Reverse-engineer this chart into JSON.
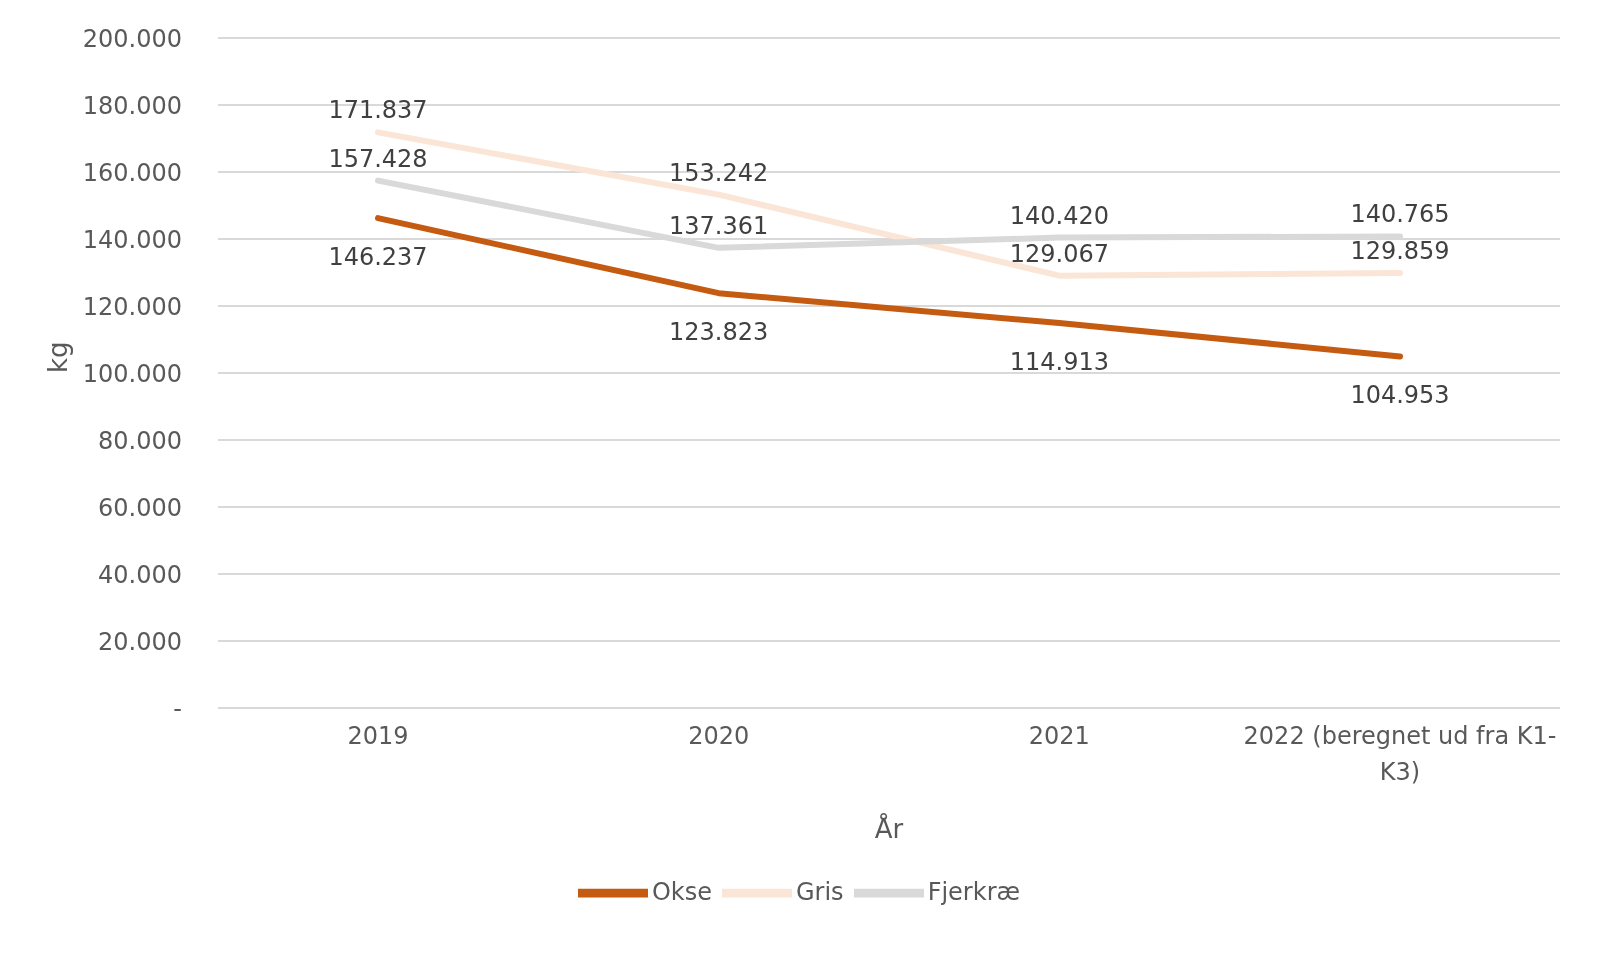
{
  "chart_data": {
    "type": "line",
    "xlabel": "År",
    "ylabel": "kg",
    "categories": [
      "2019",
      "2020",
      "2021",
      "2022 (beregnet ud fra K1-K3)"
    ],
    "series": [
      {
        "name": "Okse",
        "color": "#c55a11",
        "values": [
          146237,
          123823,
          114913,
          104953
        ],
        "value_labels": [
          "146.237",
          "123.823",
          "114.913",
          "104.953"
        ]
      },
      {
        "name": "Gris",
        "color": "#fbe5d6",
        "values": [
          171837,
          153242,
          129067,
          129859
        ],
        "value_labels": [
          "171.837",
          "153.242",
          "129.067",
          "129.859"
        ]
      },
      {
        "name": "Fjerkræ",
        "color": "#d9d9d9",
        "values": [
          157428,
          137361,
          140420,
          140765
        ],
        "value_labels": [
          "157.428",
          "137.361",
          "140.420",
          "140.765"
        ]
      }
    ],
    "ylim": [
      0,
      200000
    ],
    "yticks": [
      {
        "value": 0,
        "label": "-"
      },
      {
        "value": 20000,
        "label": "20.000"
      },
      {
        "value": 40000,
        "label": "40.000"
      },
      {
        "value": 60000,
        "label": "60.000"
      },
      {
        "value": 80000,
        "label": "80.000"
      },
      {
        "value": 100000,
        "label": "100.000"
      },
      {
        "value": 120000,
        "label": "120.000"
      },
      {
        "value": 140000,
        "label": "140.000"
      },
      {
        "value": 160000,
        "label": "160.000"
      },
      {
        "value": 180000,
        "label": "180.000"
      },
      {
        "value": 200000,
        "label": "200.000"
      }
    ],
    "grid": "y",
    "legend": "bottom",
    "marker": "none",
    "line_style": "solid"
  }
}
